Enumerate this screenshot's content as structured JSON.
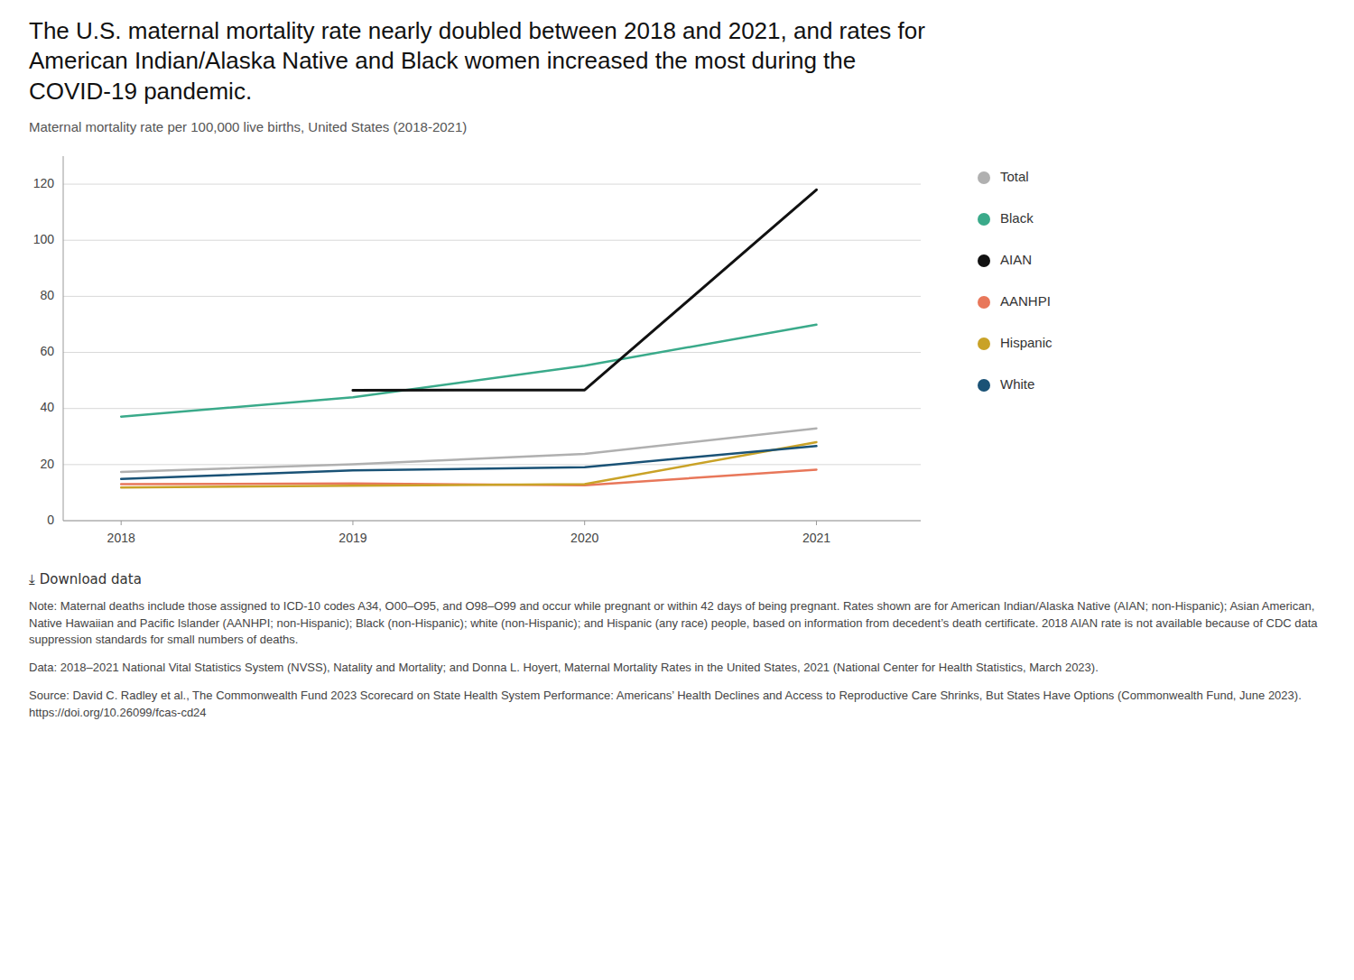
{
  "chart_data": {
    "type": "line",
    "title": "The U.S. maternal mortality rate nearly doubled between 2018 and 2021, and rates for American Indian/Alaska Native and Black women increased the most during the COVID-19 pandemic.",
    "subtitle": "Maternal mortality rate per 100,000 live births, United States (2018-2021)",
    "x": [
      2018,
      2019,
      2020,
      2021
    ],
    "series": [
      {
        "name": "Total",
        "color": "#b0b0b0",
        "values": [
          17.4,
          20.1,
          23.8,
          32.9
        ]
      },
      {
        "name": "Black",
        "color": "#3aaa8a",
        "values": [
          37.1,
          44.0,
          55.3,
          69.9
        ]
      },
      {
        "name": "AIAN",
        "color": "#111111",
        "values": [
          null,
          46.5,
          46.6,
          118.0
        ]
      },
      {
        "name": "AANHPI",
        "color": "#e8775a",
        "values": [
          13.0,
          13.3,
          12.6,
          18.2
        ]
      },
      {
        "name": "Hispanic",
        "color": "#c9a227",
        "values": [
          11.8,
          12.5,
          13.0,
          28.0
        ]
      },
      {
        "name": "White",
        "color": "#1a5276",
        "values": [
          14.9,
          17.9,
          19.1,
          26.6
        ]
      }
    ],
    "xlim": [
      2017.75,
      2021.45
    ],
    "xticks": [
      2018,
      2019,
      2020,
      2021
    ],
    "ylim": [
      0,
      130
    ],
    "yticks": [
      0,
      20,
      40,
      60,
      80,
      100,
      120
    ],
    "grid": true,
    "legend": "right",
    "annotations": [
      "⤓  Download data",
      "Note: Maternal deaths include those assigned to ICD-10 codes A34, O00–O95, and O98–O99 and occur while pregnant or within 42 days of being pregnant. Rates shown are for American Indian/Alaska Native (AIAN; non-Hispanic); Asian American, Native Hawaiian and Pacific Islander (AANHPI; non-Hispanic); Black (non-Hispanic); white (non-Hispanic); and Hispanic (any race) people, based on information from decedent’s death certificate. 2018 AIAN rate is not available because of CDC data suppression standards for small numbers of deaths.",
      "Data: 2018–2021 National Vital Statistics System (NVSS), Natality and Mortality; and Donna L. Hoyert, Maternal Mortality Rates in the United States, 2021 (National Center for Health Statistics, March 2023).",
      "Source: David C. Radley et al., The Commonwealth Fund 2023 Scorecard on State Health System Performance: Americans’ Health Declines and Access to Reproductive Care Shrinks, But States Have Options (Commonwealth Fund, June 2023). https://doi.org/10.26099/fcas-cd24"
    ]
  }
}
